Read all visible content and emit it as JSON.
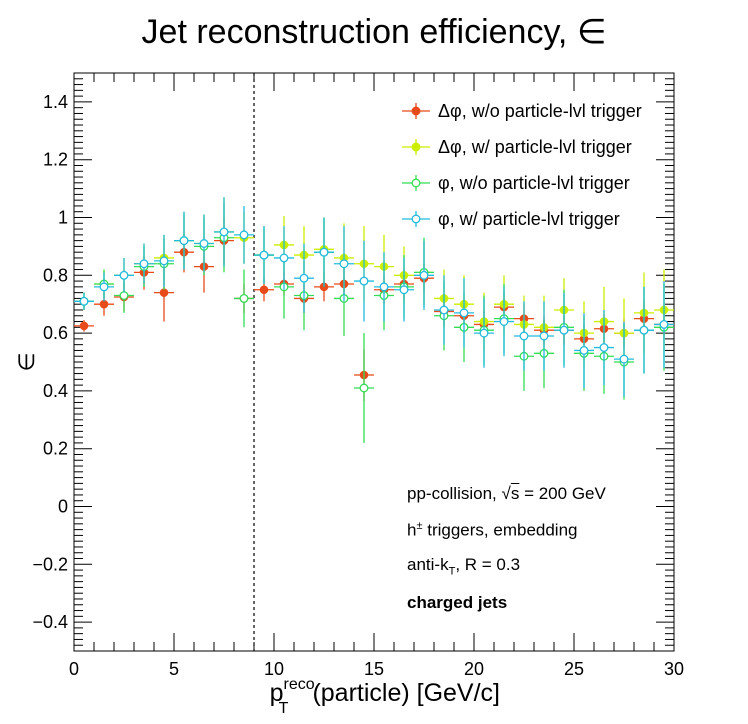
{
  "chart_data": {
    "type": "scatter",
    "title": "Jet reconstruction efficiency, ∈",
    "xlabel_main": "p",
    "xlabel_sub": "T",
    "xlabel_sup": "reco",
    "xlabel_rest": "(particle) [GeV/c]",
    "ylabel": "∈",
    "xlim": [
      0,
      30
    ],
    "ylim": [
      -0.5,
      1.5
    ],
    "x_ticks": [
      "0",
      "5",
      "10",
      "15",
      "20",
      "25",
      "30"
    ],
    "x_tick_values": [
      0,
      5,
      10,
      15,
      20,
      25,
      30
    ],
    "y_ticks": [
      "−0.4",
      "−0.2",
      "0",
      "0.2",
      "0.4",
      "0.6",
      "0.8",
      "1",
      "1.2",
      "1.4"
    ],
    "y_tick_values": [
      -0.4,
      -0.2,
      0,
      0.2,
      0.4,
      0.6,
      0.8,
      1.0,
      1.2,
      1.4
    ],
    "cut_line_x": 9,
    "grid": false,
    "legend_position": "top-right",
    "x": [
      0.5,
      1.5,
      2.5,
      3.5,
      4.5,
      5.5,
      6.5,
      7.5,
      8.5,
      9.5,
      10.5,
      11.5,
      12.5,
      13.5,
      14.5,
      15.5,
      16.5,
      17.5,
      18.5,
      19.5,
      20.5,
      21.5,
      22.5,
      23.5,
      24.5,
      25.5,
      26.5,
      27.5,
      28.5,
      29.5
    ],
    "x_err": 0.5,
    "series": [
      {
        "name": "Δφ, w/o particle-lvl trigger",
        "color": "#e84b1a",
        "marker": "filled",
        "values": [
          0.625,
          0.7,
          0.725,
          0.81,
          0.74,
          0.88,
          0.83,
          0.92,
          0.72,
          0.75,
          0.77,
          0.72,
          0.76,
          0.77,
          0.455,
          0.75,
          0.77,
          0.79,
          0.675,
          0.66,
          0.63,
          0.69,
          0.65,
          0.61,
          0.61,
          0.58,
          0.615,
          0.6,
          0.65,
          0.63
        ],
        "errors": [
          0.02,
          0.04,
          0.05,
          0.06,
          0.1,
          0.07,
          0.09,
          0.08,
          0.05,
          0.04,
          0.04,
          0.05,
          0.05,
          0.06,
          0.09,
          0.05,
          0.05,
          0.05,
          0.05,
          0.05,
          0.05,
          0.05,
          0.05,
          0.05,
          0.05,
          0.05,
          0.05,
          0.05,
          0.06,
          0.05
        ]
      },
      {
        "name": "Δφ, w/ particle-lvl trigger",
        "color": "#ccee00",
        "marker": "filled",
        "values": [
          0.71,
          0.77,
          0.8,
          0.84,
          0.86,
          0.92,
          0.91,
          0.95,
          0.93,
          0.87,
          0.905,
          0.87,
          0.89,
          0.86,
          0.84,
          0.83,
          0.8,
          0.81,
          0.72,
          0.7,
          0.64,
          0.7,
          0.63,
          0.62,
          0.68,
          0.6,
          0.64,
          0.6,
          0.67,
          0.68
        ],
        "errors": [
          0.03,
          0.05,
          0.06,
          0.07,
          0.08,
          0.09,
          0.1,
          0.12,
          0.09,
          0.09,
          0.1,
          0.1,
          0.11,
          0.12,
          0.13,
          0.11,
          0.1,
          0.11,
          0.1,
          0.1,
          0.1,
          0.1,
          0.1,
          0.11,
          0.11,
          0.11,
          0.12,
          0.12,
          0.14,
          0.14
        ]
      },
      {
        "name": "φ, w/o particle-lvl trigger",
        "color": "#33dd55",
        "marker": "open",
        "values": [
          0.71,
          0.77,
          0.73,
          0.83,
          0.84,
          0.92,
          0.9,
          0.93,
          0.72,
          0.87,
          0.76,
          0.73,
          0.88,
          0.72,
          0.41,
          0.73,
          0.76,
          0.81,
          0.66,
          0.62,
          0.61,
          0.65,
          0.52,
          0.53,
          0.62,
          0.53,
          0.52,
          0.5,
          0.61,
          0.62
        ],
        "errors": [
          0.03,
          0.05,
          0.06,
          0.07,
          0.09,
          0.1,
          0.1,
          0.12,
          0.1,
          0.1,
          0.11,
          0.12,
          0.12,
          0.13,
          0.19,
          0.12,
          0.11,
          0.12,
          0.12,
          0.12,
          0.12,
          0.12,
          0.12,
          0.12,
          0.13,
          0.13,
          0.13,
          0.13,
          0.15,
          0.15
        ]
      },
      {
        "name": "φ, w/ particle-lvl trigger",
        "color": "#22bbdd",
        "marker": "open",
        "values": [
          0.71,
          0.76,
          0.8,
          0.84,
          0.85,
          0.92,
          0.91,
          0.95,
          0.94,
          0.87,
          0.86,
          0.79,
          0.88,
          0.84,
          0.78,
          0.76,
          0.75,
          0.8,
          0.68,
          0.67,
          0.6,
          0.64,
          0.59,
          0.59,
          0.61,
          0.54,
          0.55,
          0.51,
          0.61,
          0.63
        ],
        "errors": [
          0.03,
          0.05,
          0.06,
          0.07,
          0.09,
          0.1,
          0.1,
          0.12,
          0.1,
          0.1,
          0.11,
          0.12,
          0.12,
          0.13,
          0.14,
          0.12,
          0.11,
          0.12,
          0.12,
          0.12,
          0.12,
          0.12,
          0.12,
          0.12,
          0.13,
          0.13,
          0.13,
          0.13,
          0.15,
          0.15
        ]
      }
    ],
    "annotations": {
      "collision_prefix": "pp-collision,",
      "sqrt_symbol": "√",
      "sqrt_arg": "s",
      "energy": "= 200 GeV",
      "trigger_main": "h",
      "trigger_sup": "±",
      "trigger_rest": " triggers, embedding",
      "algo_main": "anti-k",
      "algo_sub": "T",
      "algo_rest": ", R = 0.3",
      "jets": "charged jets"
    }
  }
}
